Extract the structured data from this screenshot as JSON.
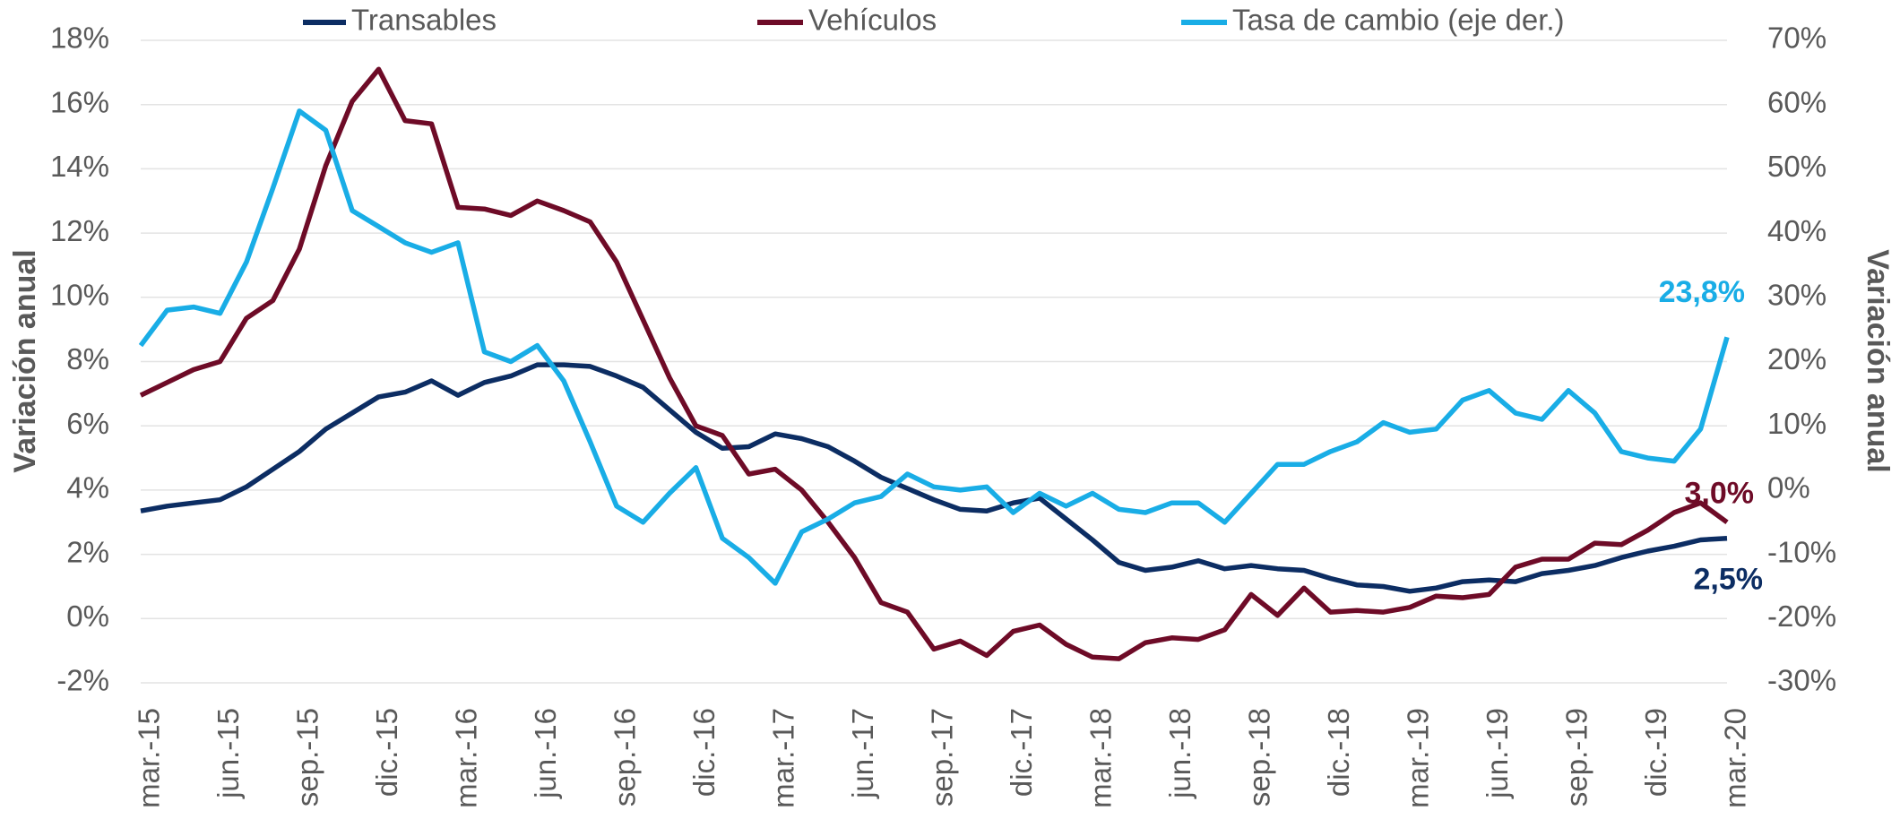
{
  "chart_data": {
    "type": "line",
    "y_label": "Variación anual",
    "y2_label": "Variación anual",
    "categories": [
      "mar.-15",
      null,
      null,
      "jun.-15",
      null,
      null,
      "sep.-15",
      null,
      null,
      "dic.-15",
      null,
      null,
      "mar.-16",
      null,
      null,
      "jun.-16",
      null,
      null,
      "sep.-16",
      null,
      null,
      "dic.-16",
      null,
      null,
      "mar.-17",
      null,
      null,
      "jun.-17",
      null,
      null,
      "sep.-17",
      null,
      null,
      "dic.-17",
      null,
      null,
      "mar.-18",
      null,
      null,
      "jun.-18",
      null,
      null,
      "sep.-18",
      null,
      null,
      "dic.-18",
      null,
      null,
      "mar.-19",
      null,
      null,
      "jun.-19",
      null,
      null,
      "sep.-19",
      null,
      null,
      "dic.-19",
      null,
      null,
      "mar.-20"
    ],
    "series": [
      {
        "name": "Transables",
        "color": "#0c2d63",
        "values": [
          3.35,
          3.5,
          3.6,
          3.7,
          4.1,
          4.65,
          5.2,
          5.9,
          6.4,
          6.9,
          7.05,
          7.4,
          6.95,
          7.35,
          7.55,
          7.9,
          7.9,
          7.85,
          7.55,
          7.2,
          6.5,
          5.8,
          5.3,
          5.35,
          5.75,
          5.6,
          5.35,
          4.9,
          4.4,
          4.05,
          3.7,
          3.4,
          3.35,
          3.6,
          3.75,
          3.1,
          2.45,
          1.75,
          1.5,
          1.6,
          1.8,
          1.55,
          1.65,
          1.55,
          1.5,
          1.25,
          1.05,
          1.0,
          0.85,
          0.95,
          1.15,
          1.2,
          1.15,
          1.4,
          1.5,
          1.65,
          1.9,
          2.1,
          2.25,
          2.45,
          2.5
        ],
        "value_labels": [
          null,
          null,
          null,
          null,
          null,
          null,
          null,
          null,
          null,
          null,
          null,
          null,
          null,
          null,
          null,
          null,
          null,
          null,
          null,
          null,
          null,
          null,
          null,
          null,
          null,
          null,
          null,
          null,
          null,
          null,
          null,
          null,
          null,
          null,
          null,
          null,
          null,
          null,
          null,
          null,
          null,
          null,
          null,
          null,
          null,
          null,
          null,
          null,
          null,
          null,
          null,
          null,
          null,
          null,
          null,
          null,
          null,
          null,
          null,
          null,
          "2,5%"
        ]
      },
      {
        "name": "Vehículos",
        "color": "#6e0b27",
        "values": [
          6.95,
          7.35,
          7.75,
          8.0,
          9.35,
          9.9,
          11.5,
          14.1,
          16.1,
          17.1,
          15.5,
          15.4,
          12.8,
          12.75,
          12.55,
          13.0,
          12.7,
          12.35,
          11.1,
          9.3,
          7.5,
          6.0,
          5.7,
          4.5,
          4.65,
          4.0,
          3.0,
          1.9,
          0.5,
          0.2,
          -0.95,
          -0.7,
          -1.15,
          -0.4,
          -0.2,
          -0.8,
          -1.2,
          -1.25,
          -0.75,
          -0.6,
          -0.65,
          -0.35,
          0.75,
          0.1,
          0.95,
          0.2,
          0.25,
          0.2,
          0.35,
          0.7,
          0.65,
          0.75,
          1.6,
          1.85,
          1.85,
          2.35,
          2.3,
          2.75,
          3.3,
          3.6,
          3.0
        ],
        "value_labels": [
          null,
          null,
          null,
          null,
          null,
          null,
          null,
          null,
          null,
          null,
          null,
          null,
          null,
          null,
          null,
          null,
          null,
          null,
          null,
          null,
          null,
          null,
          null,
          null,
          null,
          null,
          null,
          null,
          null,
          null,
          null,
          null,
          null,
          null,
          null,
          null,
          null,
          null,
          null,
          null,
          null,
          null,
          null,
          null,
          null,
          null,
          null,
          null,
          null,
          null,
          null,
          null,
          null,
          null,
          null,
          null,
          null,
          null,
          null,
          null,
          "3,0%"
        ]
      },
      {
        "name": "Tasa de cambio (eje der.)",
        "color": "#19ade6",
        "axis": "y2",
        "values": [
          22.5,
          28,
          28.5,
          27.5,
          35.5,
          47,
          59,
          56,
          43.5,
          41,
          38.5,
          37,
          38.5,
          21.5,
          20,
          22.5,
          17,
          7.5,
          -2.5,
          -5,
          -0.5,
          3.5,
          -7.5,
          -10.5,
          -14.5,
          -6.5,
          -4.5,
          -2,
          -1,
          2.5,
          0.5,
          0,
          0.5,
          -3.5,
          -0.5,
          -2.5,
          -0.5,
          -3,
          -3.5,
          -2,
          -2,
          -5,
          -0.5,
          4,
          4,
          6,
          7.5,
          10.5,
          9,
          9.5,
          14,
          15.5,
          12,
          11,
          15.5,
          12,
          6,
          5,
          4.5,
          9.5,
          23.8
        ],
        "value_labels": [
          null,
          null,
          null,
          null,
          null,
          null,
          null,
          null,
          null,
          null,
          null,
          null,
          null,
          null,
          null,
          null,
          null,
          null,
          null,
          null,
          null,
          null,
          null,
          null,
          null,
          null,
          null,
          null,
          null,
          null,
          null,
          null,
          null,
          null,
          null,
          null,
          null,
          null,
          null,
          null,
          null,
          null,
          null,
          null,
          null,
          null,
          null,
          null,
          null,
          null,
          null,
          null,
          null,
          null,
          null,
          null,
          null,
          null,
          null,
          null,
          "23,8%"
        ]
      }
    ],
    "ylim": [
      -2,
      18
    ],
    "yticks": [
      {
        "value": -2,
        "label": "-2%"
      },
      {
        "value": 0,
        "label": "0%"
      },
      {
        "value": 2,
        "label": "2%"
      },
      {
        "value": 4,
        "label": "4%"
      },
      {
        "value": 6,
        "label": "6%"
      },
      {
        "value": 8,
        "label": "8%"
      },
      {
        "value": 10,
        "label": "10%"
      },
      {
        "value": 12,
        "label": "12%"
      },
      {
        "value": 14,
        "label": "14%"
      },
      {
        "value": 16,
        "label": "16%"
      },
      {
        "value": 18,
        "label": "18%"
      }
    ],
    "y2lim": [
      -30,
      70
    ],
    "y2ticks": [
      {
        "value": -30,
        "label": "-30%"
      },
      {
        "value": -20,
        "label": "-20%"
      },
      {
        "value": -10,
        "label": "-10%"
      },
      {
        "value": 0,
        "label": "0%"
      },
      {
        "value": 10,
        "label": "10%"
      },
      {
        "value": 20,
        "label": "20%"
      },
      {
        "value": 30,
        "label": "30%"
      },
      {
        "value": 40,
        "label": "40%"
      },
      {
        "value": 50,
        "label": "50%"
      },
      {
        "value": 60,
        "label": "60%"
      },
      {
        "value": 70,
        "label": "70%"
      }
    ],
    "grid": true,
    "legend": "top"
  }
}
